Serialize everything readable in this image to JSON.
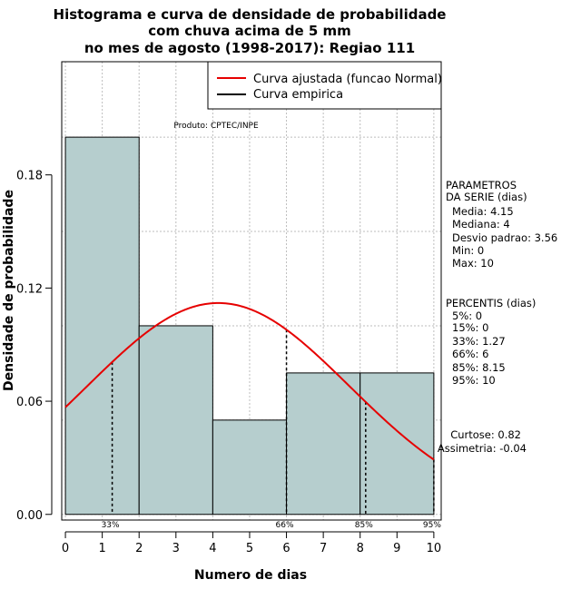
{
  "chart_data": {
    "type": "bar",
    "title_lines": [
      "Histograma e curva de densidade de probabilidade",
      "com chuva acima de 5 mm",
      "no mes de agosto (1998-2017): Regiao 111"
    ],
    "xlabel": "Numero de dias",
    "ylabel": "Densidade de probabilidade",
    "xlim": [
      -0.1,
      10.2
    ],
    "ylim": [
      -0.003,
      0.24
    ],
    "x_ticks": [
      0,
      1,
      2,
      3,
      4,
      5,
      6,
      7,
      8,
      9,
      10
    ],
    "y_ticks": [
      0.0,
      0.06,
      0.12,
      0.18
    ],
    "y_tick_labels": [
      "0.00",
      "0.06",
      "0.12",
      "0.18"
    ],
    "grid": true,
    "bins": [
      {
        "from": 0,
        "to": 2,
        "density": 0.2
      },
      {
        "from": 2,
        "to": 4,
        "density": 0.1
      },
      {
        "from": 4,
        "to": 6,
        "density": 0.05
      },
      {
        "from": 6,
        "to": 8,
        "density": 0.075
      },
      {
        "from": 8,
        "to": 10,
        "density": 0.075
      }
    ],
    "fitted_curve": {
      "name": "Curva ajustada (funcao Normal)",
      "mean": 4.15,
      "sd": 3.56,
      "color": "#e60000"
    },
    "empirical_curve": {
      "name": "Curva empirica",
      "color": "#000000"
    },
    "bar_color": "#b6cece",
    "legend_position": "top-right",
    "percentile_markers": [
      {
        "x": 1.27,
        "label": "33%"
      },
      {
        "x": 6,
        "label": "66%"
      },
      {
        "x": 8.15,
        "label": "85%"
      },
      {
        "x": 10,
        "label": "95%"
      }
    ],
    "source_label": "Produto: CPTEC/INPE",
    "parameters": {
      "header_lines": [
        "PARAMETROS",
        "DA SERIE (dias)"
      ],
      "lines": [
        "Media: 4.15",
        "Mediana: 4",
        "Desvio padrao: 3.56",
        "Min: 0",
        "Max: 10"
      ]
    },
    "percentiles": {
      "header": "PERCENTIS (dias)",
      "lines": [
        "5%: 0",
        "15%: 0",
        "33%: 1.27",
        "66%: 6",
        "85%: 8.15",
        "95%: 10"
      ]
    },
    "shape_stats": [
      "Curtose: 0.82",
      "Assimetria: -0.04"
    ]
  }
}
